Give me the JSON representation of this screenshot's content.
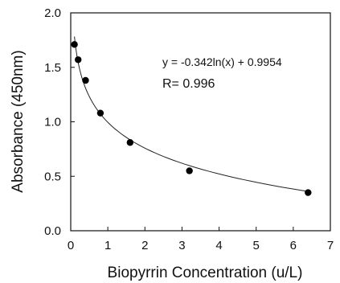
{
  "chart_data": {
    "type": "scatter",
    "xlabel": "Biopyrrin Concentration (u/L)",
    "ylabel": "Absorbance (450nm)",
    "xlim": [
      0,
      7
    ],
    "ylim": [
      0.0,
      2.0
    ],
    "x_ticks": [
      "0",
      "1",
      "2",
      "3",
      "4",
      "5",
      "6",
      "7"
    ],
    "y_ticks": [
      "0.0",
      "0.5",
      "1.0",
      "1.5",
      "2.0"
    ],
    "grid": false,
    "points": [
      {
        "x": 0.1,
        "y": 1.71
      },
      {
        "x": 0.2,
        "y": 1.57
      },
      {
        "x": 0.4,
        "y": 1.38
      },
      {
        "x": 0.8,
        "y": 1.08
      },
      {
        "x": 1.6,
        "y": 0.81
      },
      {
        "x": 3.2,
        "y": 0.55
      },
      {
        "x": 6.4,
        "y": 0.35
      }
    ],
    "trendline": {
      "type": "log",
      "a": -0.342,
      "b": 0.9954
    },
    "equation": "y = -0.342ln(x) + 0.9954",
    "r_label": "R= 0.996"
  }
}
